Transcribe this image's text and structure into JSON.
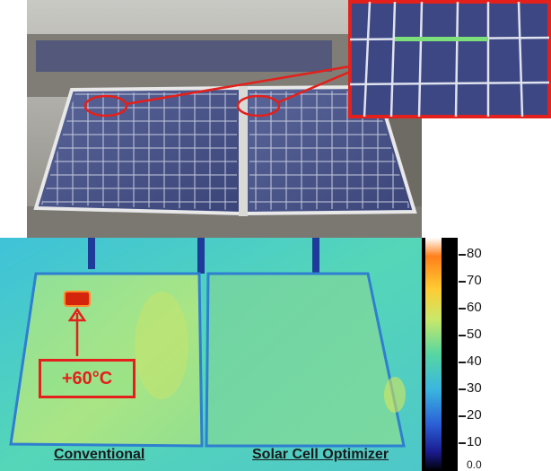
{
  "thermal": {
    "scale_labels": [
      "80",
      "70",
      "60",
      "50",
      "40",
      "30",
      "20",
      "10",
      "0.0"
    ],
    "hotspot_label": "+60°C",
    "caption_left": "Conventional",
    "caption_right": "Solar Cell Optimizer"
  },
  "colors": {
    "highlight": "#e3201b",
    "zoom_highlight": "#7ee07a",
    "panel_blue": "#3c4a86"
  }
}
